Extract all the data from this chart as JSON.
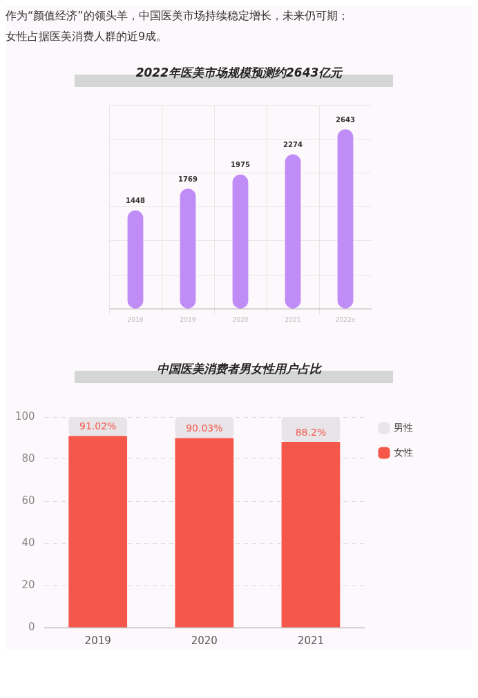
{
  "chart_data": [
    {
      "type": "bar",
      "title": "2022年医美市场规模预测约2643亿元",
      "annotations": [
        "作为“颜值经济”的领头羊，中国医美市场持续稳定增长，未来仍可期；",
        "女性占据医美消费人群的近9成。"
      ],
      "categories": [
        "2018",
        "2019",
        "2020",
        "2021",
        "2022e"
      ],
      "values": [
        1448,
        1769,
        1975,
        2274,
        2643
      ],
      "color": "#c08df6",
      "ylim": [
        0,
        3000
      ],
      "yticks": [
        0,
        500,
        1000,
        1500,
        2000,
        2500,
        3000
      ],
      "tick_labels": "x",
      "grid": true,
      "data_labels": true,
      "legend": false
    },
    {
      "type": "bar",
      "title": "中国医美消费者男女性用户占比",
      "categories": [
        "2019",
        "2020",
        "2021"
      ],
      "stacked": true,
      "series": [
        {
          "name": "女性",
          "color": "#f5584a",
          "values": [
            91.02,
            90.03,
            88.2
          ],
          "value_labels": [
            "91.02%",
            "90.03%",
            "88.2%"
          ]
        },
        {
          "name": "男性",
          "color": "#e8e4e8",
          "values": [
            9,
            10,
            12
          ]
        }
      ],
      "ylim": [
        0,
        100
      ],
      "yticks": [
        0,
        20,
        40,
        60,
        80,
        100
      ],
      "grid": "y",
      "legend": "top right"
    }
  ]
}
